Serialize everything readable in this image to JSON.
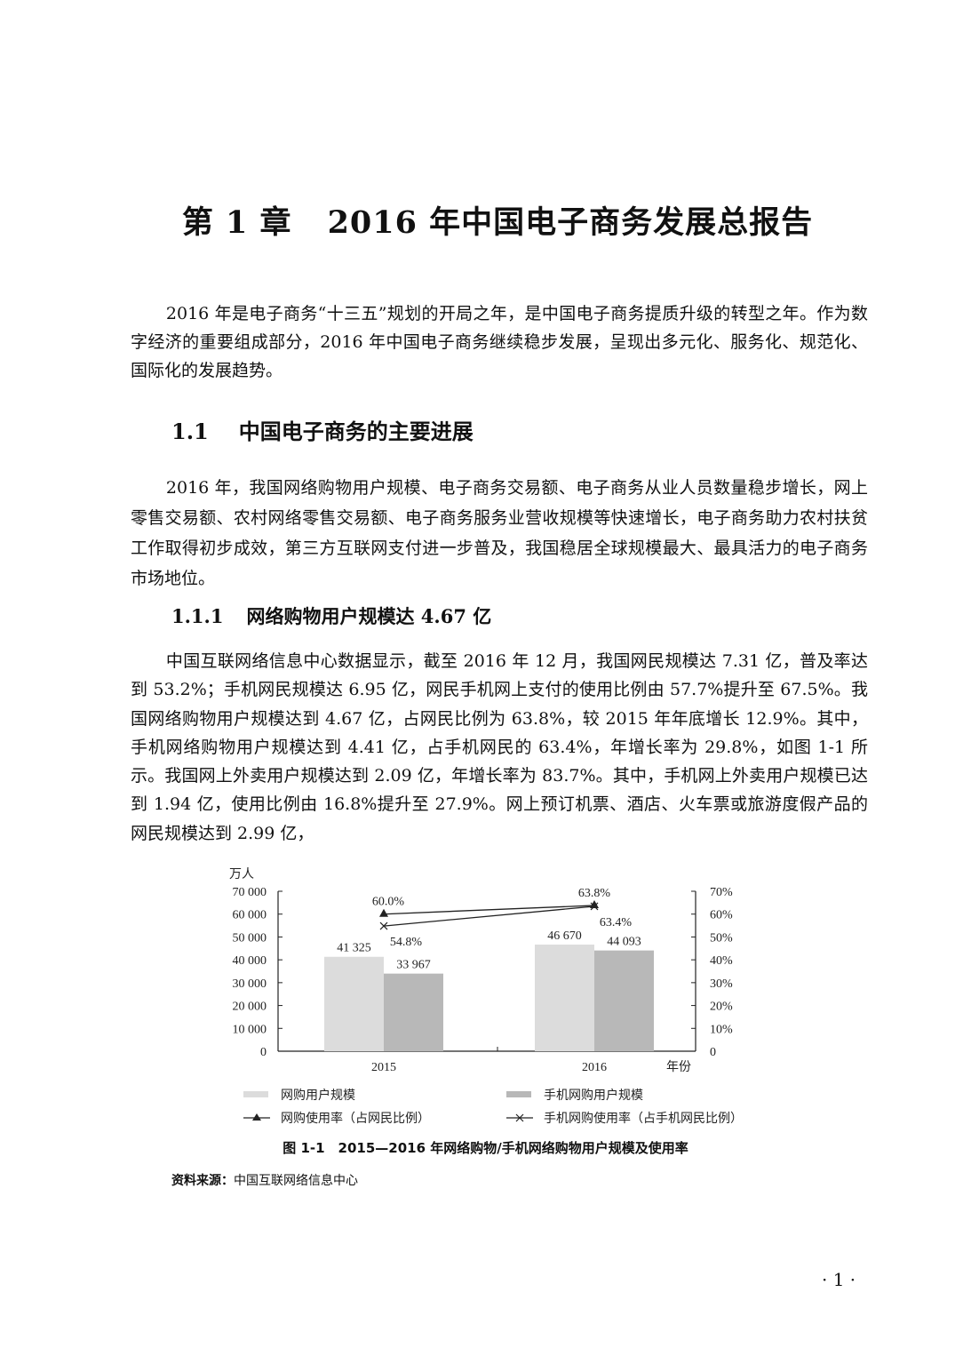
{
  "chapter_title": {
    "number": "第 1 章",
    "text": "2016 年中国电子商务发展总报告"
  },
  "intro_paragraph": "2016 年是电子商务“十三五”规划的开局之年，是中国电子商务提质升级的转型之年。作为数字经济的重要组成部分，2016 年中国电子商务继续稳步发展，呈现出多元化、服务化、规范化、国际化的发展趋势。",
  "section": {
    "number": "1.1",
    "title": "中国电子商务的主要进展"
  },
  "section_paragraph": "2016 年，我国网络购物用户规模、电子商务交易额、电子商务从业人员数量稳步增长，网上零售交易额、农村网络零售交易额、电子商务服务业营收规模等快速增长，电子商务助力农村扶贫工作取得初步成效，第三方互联网支付进一步普及，我国稳居全球规模最大、最具活力的电子商务市场地位。",
  "subsection": {
    "number": "1.1.1",
    "title": "网络购物用户规模达 4.67 亿"
  },
  "subsection_paragraph": "中国互联网络信息中心数据显示，截至 2016 年 12 月，我国网民规模达 7.31 亿，普及率达到 53.2%；手机网民规模达 6.95 亿，网民手机网上支付的使用比例由 57.7%提升至 67.5%。我国网络购物用户规模达到 4.67 亿，占网民比例为 63.8%，较 2015 年年底增长 12.9%。其中，手机网络购物用户规模达到 4.41 亿，占手机网民的 63.4%，年增长率为 29.8%，如图 1-1 所示。我国网上外卖用户规模达到 2.09 亿，年增长率为 83.7%。其中，手机网上外卖用户规模已达到 1.94 亿，使用比例由 16.8%提升至 27.9%。网上预订机票、酒店、火车票或旅游度假产品的网民规模达到 2.99 亿，",
  "figure": {
    "caption": "图 1-1　2015—2016 年网络购物/手机网络购物用户规模及使用率",
    "source_label": "资料来源：",
    "source_text": "中国互联网络信息中心"
  },
  "page_number": "· 1 ·",
  "chart_data": {
    "type": "bar",
    "categories": [
      "2015",
      "2016"
    ],
    "xlabel": "年份",
    "ylabel": "万人",
    "ylim": [
      0,
      70000
    ],
    "y2lim": [
      0,
      70
    ],
    "yticks": [
      "0",
      "10 000",
      "20 000",
      "30 000",
      "40 000",
      "50 000",
      "60 000",
      "70 000"
    ],
    "y2ticks": [
      "0",
      "10%",
      "20%",
      "30%",
      "40%",
      "50%",
      "60%",
      "70%"
    ],
    "grid": false,
    "legend_position": "bottom",
    "series": [
      {
        "name": "网购用户规模",
        "kind": "bar",
        "axis": "left",
        "color": "#dcdcdc",
        "values": [
          41325,
          46670
        ],
        "labels": [
          "41 325",
          "46 670"
        ]
      },
      {
        "name": "手机网购用户规模",
        "kind": "bar",
        "axis": "left",
        "color": "#b8b8b8",
        "values": [
          33967,
          44093
        ],
        "labels": [
          "33 967",
          "44 093"
        ]
      },
      {
        "name": "网购使用率（占网民比例）",
        "kind": "line",
        "marker": "triangle",
        "axis": "right",
        "color": "#222222",
        "values": [
          60.0,
          63.8
        ],
        "labels": [
          "60.0%",
          "63.8%"
        ]
      },
      {
        "name": "手机网购使用率（占手机网民比例）",
        "kind": "line",
        "marker": "x",
        "axis": "right",
        "color": "#222222",
        "values": [
          54.8,
          63.4
        ],
        "labels": [
          "54.8%",
          "63.4%"
        ]
      }
    ]
  }
}
